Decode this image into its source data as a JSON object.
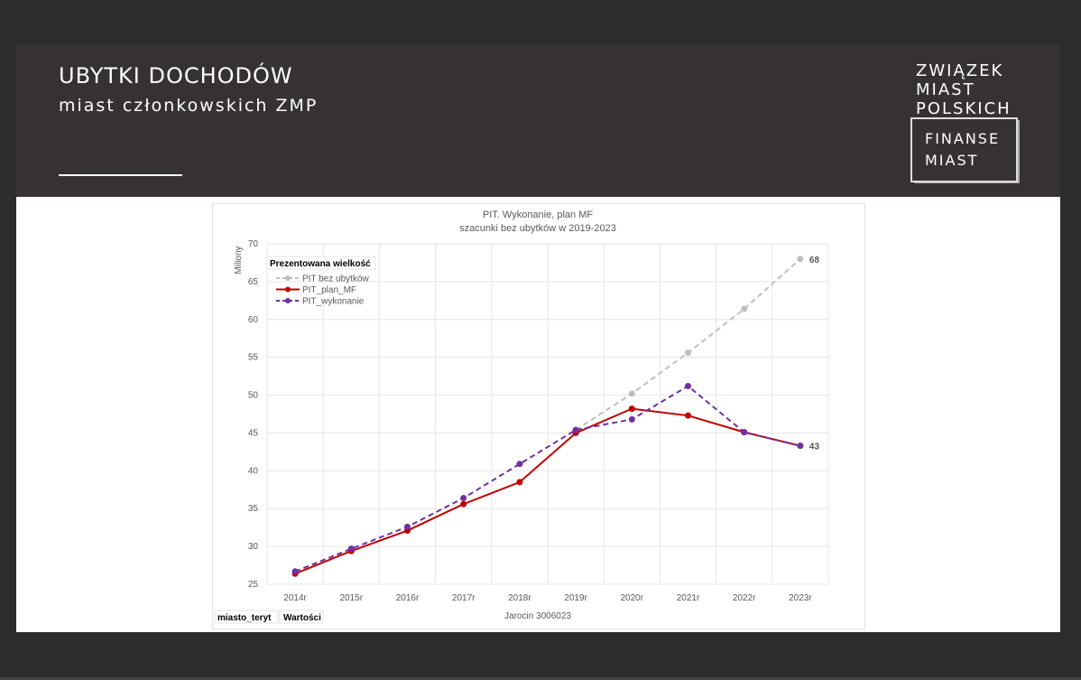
{
  "header": {
    "title": "UBYTKI DOCHODÓW",
    "subtitle": "miast członkowskich ZMP"
  },
  "logo": {
    "lines": [
      "ZWIĄZEK",
      "MIAST",
      "POLSKICH"
    ],
    "box_lines": [
      "FINANSE",
      "MIAST"
    ]
  },
  "colors": {
    "bez_ubytkow": "#bfbfbf",
    "plan": "#c00000",
    "wykonanie": "#7030a0",
    "header_bg": "#363233"
  },
  "chart_data": {
    "type": "line",
    "title": "PIT.  Wykonanie, plan MF",
    "subtitle": "szacunki bez ubytków w 2019-2023",
    "ylabel": "Miliony",
    "xlabel": "Jarocin    3006023",
    "ylim": [
      25,
      70
    ],
    "yticks": [
      25,
      30,
      35,
      40,
      45,
      50,
      55,
      60,
      65,
      70
    ],
    "categories": [
      "2014r",
      "2015r",
      "2016r",
      "2017r",
      "2018r",
      "2019r",
      "2020r",
      "2021r",
      "2022r",
      "2023r"
    ],
    "legend_title": "Prezentowana wielkość",
    "legend_position": "top-left",
    "grid": true,
    "series": [
      {
        "name": "PIT bez ubytków",
        "style": "dashed",
        "values": [
          null,
          null,
          null,
          null,
          null,
          45.4,
          50.2,
          55.6,
          61.4,
          68.0
        ],
        "end_label": "68"
      },
      {
        "name": "PIT_plan_MF",
        "style": "solid",
        "values": [
          26.4,
          29.4,
          32.1,
          35.6,
          38.5,
          45.0,
          48.2,
          47.3,
          45.1,
          43.3
        ]
      },
      {
        "name": "PIT_wykonanie",
        "style": "dashed",
        "values": [
          26.7,
          29.7,
          32.6,
          36.4,
          40.9,
          45.4,
          46.8,
          51.2,
          45.1,
          43.3
        ],
        "end_label": "43"
      }
    ],
    "pivot_fields": [
      "miasto_teryt",
      "Wartości"
    ]
  }
}
